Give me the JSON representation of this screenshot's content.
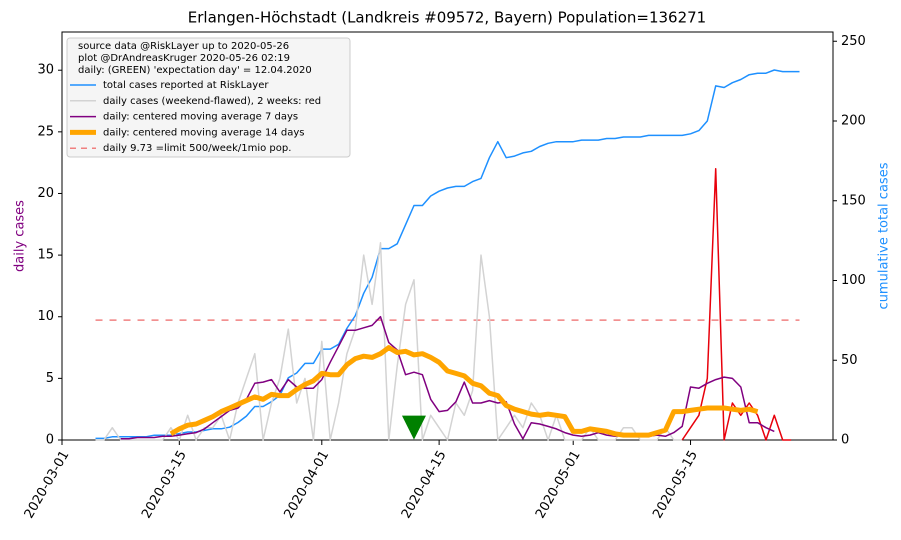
{
  "chart_data": {
    "type": "line",
    "title": "Erlangen-Höchstadt (Landkreis #09572, Bayern) Population=136271",
    "legend_title": [
      "source data @RiskLayer up to 2020-05-26",
      "plot @DrAndreasKruger 2020-05-26 02:19",
      "daily: (GREEN) 'expectation day' = 12.04.2020"
    ],
    "ylabel": "daily cases",
    "ylabel_color": "#800080",
    "y2label": "cumulative total cases",
    "y2label_color": "#1e90ff",
    "legend": "upper left",
    "xlim": [
      "2020-03-01",
      "2020-06-01"
    ],
    "xticks": [
      "2020-03-01",
      "2020-03-15",
      "2020-04-01",
      "2020-04-15",
      "2020-05-01",
      "2020-05-15"
    ],
    "ylim": [
      0,
      33.1
    ],
    "yticks": [
      0,
      5,
      10,
      15,
      20,
      25,
      30
    ],
    "y2lim": [
      0,
      255.8
    ],
    "y2ticks": [
      0,
      50,
      100,
      150,
      200,
      250
    ],
    "x": [
      "2020-03-05",
      "2020-03-06",
      "2020-03-07",
      "2020-03-08",
      "2020-03-09",
      "2020-03-10",
      "2020-03-11",
      "2020-03-12",
      "2020-03-13",
      "2020-03-14",
      "2020-03-15",
      "2020-03-16",
      "2020-03-17",
      "2020-03-18",
      "2020-03-19",
      "2020-03-20",
      "2020-03-21",
      "2020-03-22",
      "2020-03-23",
      "2020-03-24",
      "2020-03-25",
      "2020-03-26",
      "2020-03-27",
      "2020-03-28",
      "2020-03-29",
      "2020-03-30",
      "2020-03-31",
      "2020-04-01",
      "2020-04-02",
      "2020-04-03",
      "2020-04-04",
      "2020-04-05",
      "2020-04-06",
      "2020-04-07",
      "2020-04-08",
      "2020-04-09",
      "2020-04-10",
      "2020-04-11",
      "2020-04-12",
      "2020-04-13",
      "2020-04-14",
      "2020-04-15",
      "2020-04-16",
      "2020-04-17",
      "2020-04-18",
      "2020-04-19",
      "2020-04-20",
      "2020-04-21",
      "2020-04-22",
      "2020-04-23",
      "2020-04-24",
      "2020-04-25",
      "2020-04-26",
      "2020-04-27",
      "2020-04-28",
      "2020-04-29",
      "2020-04-30",
      "2020-05-01",
      "2020-05-02",
      "2020-05-03",
      "2020-05-04",
      "2020-05-05",
      "2020-05-06",
      "2020-05-07",
      "2020-05-08",
      "2020-05-09",
      "2020-05-10",
      "2020-05-11",
      "2020-05-12",
      "2020-05-13",
      "2020-05-14",
      "2020-05-15",
      "2020-05-16",
      "2020-05-17",
      "2020-05-18",
      "2020-05-19",
      "2020-05-20",
      "2020-05-21",
      "2020-05-22",
      "2020-05-23",
      "2020-05-24",
      "2020-05-25",
      "2020-05-26",
      "2020-05-27",
      "2020-05-28"
    ],
    "series": [
      {
        "name": "total cases reported at RiskLayer",
        "color": "#1e90ff",
        "width": 1.5,
        "axis": "y2",
        "values": [
          1,
          1,
          2,
          2,
          2,
          2,
          2,
          3,
          3,
          3,
          4,
          5,
          5,
          6,
          7,
          7,
          8,
          11,
          15,
          21,
          21,
          24,
          28,
          39,
          42,
          48,
          48,
          57,
          57,
          60,
          70,
          78,
          92,
          102,
          120,
          120,
          123,
          135,
          147,
          147,
          153,
          156,
          158,
          159,
          159,
          162,
          164,
          177,
          187,
          177,
          178,
          180,
          181,
          184,
          186,
          187,
          187,
          187,
          188,
          188,
          188,
          189,
          189,
          190,
          190,
          190,
          191,
          191,
          191,
          191,
          191,
          192,
          194,
          200,
          222,
          221,
          224,
          226,
          229,
          230,
          230,
          232,
          231,
          231,
          231
        ]
      },
      {
        "name": "daily cases (weekend-flawed), 2 weeks: red",
        "color": "#d3d3d3",
        "width": 1.5,
        "values": [
          0,
          0,
          1,
          0,
          0,
          0,
          0,
          0,
          0,
          1,
          0,
          2,
          0,
          1,
          1,
          2,
          0,
          3,
          5,
          7,
          0,
          3,
          5,
          9,
          3,
          5,
          0,
          8,
          0,
          3,
          7,
          9,
          15,
          11,
          16,
          0,
          6,
          11,
          13,
          0,
          2,
          1,
          0,
          3,
          2,
          4,
          15,
          10,
          0,
          1,
          2,
          1,
          3,
          2,
          0,
          2,
          0,
          0,
          0,
          1,
          0,
          0,
          0,
          1,
          1,
          0,
          0,
          0,
          1,
          0,
          0,
          null,
          null,
          null,
          null,
          null,
          null,
          null,
          null,
          null,
          null,
          null,
          null,
          null,
          null
        ]
      },
      {
        "color": "#e8000b",
        "width": 1.5,
        "values": [
          null,
          null,
          null,
          null,
          null,
          null,
          null,
          null,
          null,
          null,
          null,
          null,
          null,
          null,
          null,
          null,
          null,
          null,
          null,
          null,
          null,
          null,
          null,
          null,
          null,
          null,
          null,
          null,
          null,
          null,
          null,
          null,
          null,
          null,
          null,
          null,
          null,
          null,
          null,
          null,
          null,
          null,
          null,
          null,
          null,
          null,
          null,
          null,
          null,
          null,
          null,
          null,
          null,
          null,
          null,
          null,
          null,
          null,
          null,
          null,
          null,
          null,
          null,
          null,
          null,
          null,
          null,
          null,
          null,
          null,
          0,
          1,
          2,
          5,
          22,
          0,
          3,
          2,
          3,
          2,
          0,
          2,
          0,
          0,
          null
        ]
      },
      {
        "name": "daily: centered moving average 7 days",
        "color": "#800080",
        "width": 1.5,
        "values": [
          null,
          null,
          null,
          0.1,
          0.1,
          0.2,
          0.2,
          0.2,
          0.3,
          0.3,
          0.4,
          0.5,
          0.6,
          0.9,
          1.4,
          1.9,
          2.4,
          2.6,
          3.3,
          4.6,
          4.7,
          4.9,
          3.9,
          4.9,
          4.3,
          4.2,
          4.2,
          4.9,
          6.3,
          7.6,
          8.9,
          8.9,
          9.1,
          9.3,
          10.0,
          7.9,
          7.3,
          5.3,
          5.5,
          5.3,
          3.3,
          2.3,
          2.4,
          3.1,
          4.7,
          3.0,
          3.0,
          3.2,
          3.0,
          3.1,
          1.3,
          0.1,
          1.4,
          1.3,
          1.1,
          0.9,
          0.6,
          0.4,
          0.3,
          0.4,
          0.6,
          0.4,
          0.3,
          0.4,
          0.4,
          0.4,
          0.3,
          0.4,
          0.3,
          0.6,
          1.1,
          4.3,
          4.2,
          4.6,
          4.9,
          5.1,
          5.0,
          4.3,
          1.4,
          1.4,
          1.0,
          0.7,
          null,
          null,
          null
        ]
      },
      {
        "name": "daily: centered moving average 14 days",
        "color": "#ffa500",
        "width": 5,
        "values": [
          null,
          null,
          null,
          null,
          null,
          null,
          null,
          null,
          null,
          0.5,
          0.9,
          1.2,
          1.3,
          1.6,
          1.9,
          2.3,
          2.6,
          2.9,
          3.2,
          3.5,
          3.3,
          3.7,
          3.6,
          3.6,
          4.1,
          4.5,
          4.8,
          5.4,
          5.3,
          5.3,
          6.1,
          6.6,
          6.8,
          6.7,
          7.0,
          7.5,
          7.1,
          7.2,
          6.9,
          7.0,
          6.7,
          6.3,
          5.6,
          5.4,
          5.2,
          4.6,
          4.4,
          3.8,
          3.6,
          2.8,
          2.5,
          2.3,
          2.1,
          2.0,
          2.1,
          2.0,
          1.9,
          0.7,
          0.7,
          0.9,
          0.8,
          0.7,
          0.5,
          0.4,
          0.4,
          0.4,
          0.4,
          0.6,
          0.8,
          2.3,
          2.3,
          2.4,
          2.5,
          2.6,
          2.6,
          2.6,
          2.5,
          2.4,
          2.5,
          2.3,
          null,
          null,
          null,
          null,
          null
        ]
      }
    ],
    "hline": {
      "value": 9.73,
      "name": "daily 9.73 =limit 500/week/1mio pop.",
      "color": "#f08080"
    },
    "marker": {
      "x": "2020-04-12",
      "y": 1,
      "color": "#008000"
    }
  }
}
